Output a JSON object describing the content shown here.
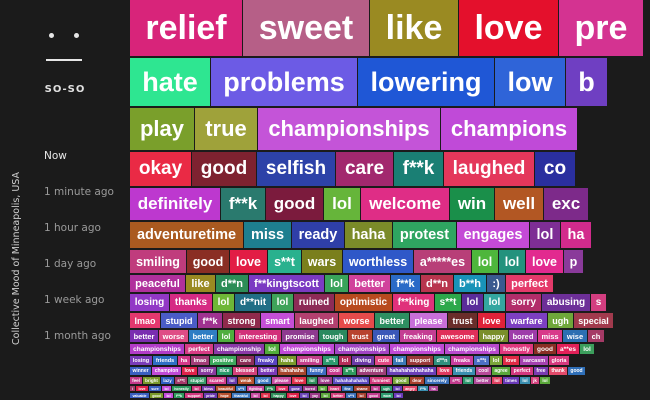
{
  "sidebar": {
    "mood_label": "SO-SO",
    "vertical_title": "Collective Mood of Minneapolis, USA",
    "times": [
      "Now",
      "1 minute ago",
      "1 hour ago",
      "1 day ago",
      "1 week ago",
      "1 month ago"
    ],
    "active_time_index": 0
  },
  "rows": [
    {
      "words": [
        {
          "t": "relief",
          "c": "#d8247a"
        },
        {
          "t": "sweet",
          "c": "#b65f87"
        },
        {
          "t": "like",
          "c": "#9a8a22"
        },
        {
          "t": "love",
          "c": "#e4102c"
        },
        {
          "t": "pre",
          "c": "#d43391"
        }
      ]
    },
    {
      "words": [
        {
          "t": "hate",
          "c": "#2ee691"
        },
        {
          "t": "problems",
          "c": "#6c5be5"
        },
        {
          "t": "lowering",
          "c": "#1f57d6"
        },
        {
          "t": "low",
          "c": "#2f64d8"
        },
        {
          "t": "b",
          "c": "#6f3fc2"
        }
      ]
    },
    {
      "words": [
        {
          "t": "play",
          "c": "#7a9f2b"
        },
        {
          "t": "true",
          "c": "#9fa23a"
        },
        {
          "t": "championships",
          "c": "#c454d8"
        },
        {
          "t": "champions",
          "c": "#c04ad8"
        }
      ]
    },
    {
      "words": [
        {
          "t": "okay",
          "c": "#ea2a45"
        },
        {
          "t": "good",
          "c": "#7e2230"
        },
        {
          "t": "selfish",
          "c": "#2d42a8"
        },
        {
          "t": "care",
          "c": "#a2286e"
        },
        {
          "t": "f**k",
          "c": "#1a7f74"
        },
        {
          "t": "laughed",
          "c": "#e4375b"
        },
        {
          "t": "co",
          "c": "#2a2f9f"
        }
      ]
    },
    {
      "words": [
        {
          "t": "definitely",
          "c": "#bd38cf"
        },
        {
          "t": "f**k",
          "c": "#2a7a6e"
        },
        {
          "t": "good",
          "c": "#7b1b3d"
        },
        {
          "t": "lol",
          "c": "#66b53a"
        },
        {
          "t": "welcome",
          "c": "#df2d86"
        },
        {
          "t": "win",
          "c": "#1a8f4a"
        },
        {
          "t": "well",
          "c": "#b25723"
        },
        {
          "t": "exc",
          "c": "#7d2a8a"
        }
      ]
    },
    {
      "words": [
        {
          "t": "adventuretime",
          "c": "#aa5a20"
        },
        {
          "t": "miss",
          "c": "#1e7f8f"
        },
        {
          "t": "ready",
          "c": "#2f3fa8"
        },
        {
          "t": "haha",
          "c": "#7b8b29"
        },
        {
          "t": "protest",
          "c": "#2fa561"
        },
        {
          "t": "engages",
          "c": "#c44ad6"
        },
        {
          "t": "lol",
          "c": "#7e2e95"
        },
        {
          "t": "ha",
          "c": "#d22b8c"
        }
      ]
    },
    {
      "words": [
        {
          "t": "smiling",
          "c": "#c03c7d"
        },
        {
          "t": "good",
          "c": "#8a2e24"
        },
        {
          "t": "love",
          "c": "#e21d45"
        },
        {
          "t": "s**t",
          "c": "#29b18e"
        },
        {
          "t": "wars",
          "c": "#7a7f1c"
        },
        {
          "t": "worthless",
          "c": "#2f58c8"
        },
        {
          "t": "a*****es",
          "c": "#b83f78"
        },
        {
          "t": "lol",
          "c": "#4eb63c"
        },
        {
          "t": "lol",
          "c": "#23927d"
        },
        {
          "t": "love",
          "c": "#e22a8f"
        },
        {
          "t": "p",
          "c": "#8a3a9a"
        }
      ]
    },
    {
      "words": [
        {
          "t": "peaceful",
          "c": "#b0309c"
        },
        {
          "t": "like",
          "c": "#9a8a22"
        },
        {
          "t": "d**n",
          "c": "#2c8d57"
        },
        {
          "t": "f**kingtscott",
          "c": "#7b3ac2"
        },
        {
          "t": "lol",
          "c": "#39a35a"
        },
        {
          "t": "better",
          "c": "#d1429c"
        },
        {
          "t": "f**k",
          "c": "#2b6ac7"
        },
        {
          "t": "d**n",
          "c": "#b8354e"
        },
        {
          "t": "b**h",
          "c": "#1993b8"
        },
        {
          "t": ":)",
          "c": "#3a5a8f"
        },
        {
          "t": "perfect",
          "c": "#e43a6a"
        }
      ]
    },
    {
      "words": [
        {
          "t": "losing",
          "c": "#9238c6"
        },
        {
          "t": "thanks",
          "c": "#d62b84"
        },
        {
          "t": "lol",
          "c": "#6eb737"
        },
        {
          "t": "d**nit",
          "c": "#216f86"
        },
        {
          "t": "lol",
          "c": "#3fa35a"
        },
        {
          "t": "ruined",
          "c": "#8d2b57"
        },
        {
          "t": "optimistic",
          "c": "#b84a1f"
        },
        {
          "t": "f**king",
          "c": "#e0317b"
        },
        {
          "t": "s**t",
          "c": "#2da84b"
        },
        {
          "t": "lol",
          "c": "#5a2c9a"
        },
        {
          "t": "lol",
          "c": "#33a6a0"
        },
        {
          "t": "sorry",
          "c": "#b22d6a"
        },
        {
          "t": "abusing",
          "c": "#6d2f98"
        },
        {
          "t": "s",
          "c": "#d33e80"
        }
      ]
    },
    {
      "words": [
        {
          "t": "lmao",
          "c": "#e4386e"
        },
        {
          "t": "stupid",
          "c": "#4a5cc6"
        },
        {
          "t": "f**k",
          "c": "#a03290"
        },
        {
          "t": "strong",
          "c": "#8f2a4c"
        },
        {
          "t": "smart",
          "c": "#c44fd6"
        },
        {
          "t": "laughed",
          "c": "#b3406f"
        },
        {
          "t": "worse",
          "c": "#e64b4b"
        },
        {
          "t": "better",
          "c": "#2e8f62"
        },
        {
          "t": "please",
          "c": "#c86fd8"
        },
        {
          "t": "trust",
          "c": "#6a2d2a"
        },
        {
          "t": "love",
          "c": "#e02239"
        },
        {
          "t": "warfare",
          "c": "#7d3fc1"
        },
        {
          "t": "ugh",
          "c": "#6fa73a"
        },
        {
          "t": "special",
          "c": "#a13a4d"
        }
      ]
    },
    {
      "words": [
        {
          "t": "better",
          "c": "#7a2eb0"
        },
        {
          "t": "worse",
          "c": "#df4c86"
        },
        {
          "t": "better",
          "c": "#2f7ec4"
        },
        {
          "t": "lol",
          "c": "#4fae3e"
        },
        {
          "t": "interesting",
          "c": "#d2307a"
        },
        {
          "t": "promise",
          "c": "#8f3a90"
        },
        {
          "t": "tough",
          "c": "#2a8a5f"
        },
        {
          "t": "trust",
          "c": "#b8432e"
        },
        {
          "t": "great",
          "c": "#3b58b8"
        },
        {
          "t": "freaking",
          "c": "#c43e93"
        },
        {
          "t": "awesome",
          "c": "#e02f5a"
        },
        {
          "t": "happy",
          "c": "#7a8f2a"
        },
        {
          "t": "bored",
          "c": "#9e3caa"
        },
        {
          "t": "miss",
          "c": "#d83a8a"
        },
        {
          "t": "wise",
          "c": "#2c6fb2"
        },
        {
          "t": "ch",
          "c": "#a53a66"
        }
      ]
    },
    {
      "words": [
        {
          "t": "championships",
          "c": "#b23cc8"
        },
        {
          "t": "perfect",
          "c": "#d63c84"
        },
        {
          "t": "championship",
          "c": "#8b3aa8"
        },
        {
          "t": "lol",
          "c": "#51ad3b"
        },
        {
          "t": "championships",
          "c": "#c04ad6"
        },
        {
          "t": "championships",
          "c": "#a245c4"
        },
        {
          "t": "championships",
          "c": "#c04ad6"
        },
        {
          "t": "championships",
          "c": "#b84acd"
        },
        {
          "t": "honestly",
          "c": "#e0387e"
        },
        {
          "t": "good",
          "c": "#8a2e24"
        },
        {
          "t": "a**es",
          "c": "#e22058"
        },
        {
          "t": "lol",
          "c": "#3c9e5c"
        }
      ]
    },
    {
      "words": [
        {
          "t": "losing",
          "c": "#7a3cb8"
        },
        {
          "t": "friends",
          "c": "#2f6fc4"
        },
        {
          "t": "ha",
          "c": "#d4398a"
        },
        {
          "t": "lmao",
          "c": "#a33d78"
        },
        {
          "t": "positive",
          "c": "#3da95d"
        },
        {
          "t": "care",
          "c": "#8c2e57"
        },
        {
          "t": "freaky",
          "c": "#5a45c0"
        },
        {
          "t": "haha",
          "c": "#7a9a2b"
        },
        {
          "t": "smiling",
          "c": "#c3408b"
        },
        {
          "t": "s**t",
          "c": "#2c9a6e"
        },
        {
          "t": "lol",
          "c": "#b52e5a"
        },
        {
          "t": "diving",
          "c": "#6b3aa6"
        },
        {
          "t": "cute",
          "c": "#e04a84"
        },
        {
          "t": "fail",
          "c": "#3b7ab8"
        },
        {
          "t": "support",
          "c": "#9b3a3a"
        },
        {
          "t": "d**n",
          "c": "#2f8f7e"
        },
        {
          "t": "freaks",
          "c": "#c93c9e"
        },
        {
          "t": "s**t",
          "c": "#4c6fc5"
        },
        {
          "t": "lol",
          "c": "#7aa63a"
        },
        {
          "t": "love",
          "c": "#e02a45"
        },
        {
          "t": "sarcasm",
          "c": "#a541b0"
        },
        {
          "t": "gloria",
          "c": "#d5397e"
        }
      ]
    },
    {
      "words": [
        {
          "t": "winner",
          "c": "#3a5fc0"
        },
        {
          "t": "champion",
          "c": "#c04ad6"
        },
        {
          "t": "love",
          "c": "#e0224a"
        },
        {
          "t": "sorry",
          "c": "#8a3aa0"
        },
        {
          "t": "nice",
          "c": "#2a9a6a"
        },
        {
          "t": "blessed",
          "c": "#d4427a"
        },
        {
          "t": "better",
          "c": "#7b3ab8"
        },
        {
          "t": "hahahaha",
          "c": "#a8452e"
        },
        {
          "t": "funny",
          "c": "#3f6ec2"
        },
        {
          "t": "cool",
          "c": "#c83c8e"
        },
        {
          "t": "s**t",
          "c": "#2e9a5e"
        },
        {
          "t": "adventure",
          "c": "#9e3f78"
        },
        {
          "t": "hahahahahhahaha",
          "c": "#6a3fb8"
        },
        {
          "t": "love",
          "c": "#e03a60"
        },
        {
          "t": "friends",
          "c": "#3a8fb0"
        },
        {
          "t": "cool",
          "c": "#b84a9a"
        },
        {
          "t": "agree",
          "c": "#5aa83a"
        },
        {
          "t": "perfect",
          "c": "#d2387e"
        },
        {
          "t": "free",
          "c": "#7a3ab0"
        },
        {
          "t": "thank",
          "c": "#e24a6a"
        },
        {
          "t": "good",
          "c": "#2f6fb8"
        }
      ]
    },
    {
      "words": [
        {
          "t": "feel",
          "c": "#c43a8a"
        },
        {
          "t": "bright",
          "c": "#7a9a2b"
        },
        {
          "t": "lazy",
          "c": "#2f5fc0"
        },
        {
          "t": "s**t",
          "c": "#a63a6a"
        },
        {
          "t": "stupid",
          "c": "#3a9a6a"
        },
        {
          "t": "scared",
          "c": "#d4408a"
        },
        {
          "t": "lol",
          "c": "#6b3ab0"
        },
        {
          "t": "weak",
          "c": "#b8502e"
        },
        {
          "t": "good",
          "c": "#3f7ac2"
        },
        {
          "t": "please",
          "c": "#c84aa0"
        },
        {
          "t": "love",
          "c": "#e0304a"
        },
        {
          "t": "lol",
          "c": "#2e8f5a"
        },
        {
          "t": "love",
          "c": "#9e3a8a"
        },
        {
          "t": "hahahahahaha",
          "c": "#5a4ac0"
        },
        {
          "t": "funniest",
          "c": "#d2387a"
        },
        {
          "t": "good",
          "c": "#7aa63a"
        },
        {
          "t": "dear",
          "c": "#a8402e"
        },
        {
          "t": "sincerely",
          "c": "#3a6fb8"
        },
        {
          "t": "s**t",
          "c": "#c23c8e"
        },
        {
          "t": "lol",
          "c": "#2f9a70"
        },
        {
          "t": "better",
          "c": "#b04a9a"
        },
        {
          "t": "lol",
          "c": "#e04060"
        },
        {
          "t": "times",
          "c": "#6a3ab8"
        },
        {
          "t": "lol",
          "c": "#3a8fb0"
        },
        {
          "t": "jk",
          "c": "#d4427e"
        },
        {
          "t": "lol",
          "c": "#5aa83a"
        }
      ]
    },
    {
      "words": [
        {
          "t": "i",
          "c": "#a23a6a"
        },
        {
          "t": "love",
          "c": "#e0224a"
        },
        {
          "t": "sure",
          "c": "#3a5fc0"
        },
        {
          "t": "lol",
          "c": "#c44ad6"
        },
        {
          "t": "honestly",
          "c": "#2e9a5e"
        },
        {
          "t": "lol",
          "c": "#d2387e"
        },
        {
          "t": "bless",
          "c": "#7a3ab0"
        },
        {
          "t": "beautiful",
          "c": "#b8502e"
        },
        {
          "t": "s**t",
          "c": "#3f7ac2"
        },
        {
          "t": "fighting",
          "c": "#c84aa0"
        },
        {
          "t": "f**k",
          "c": "#2f8f5a"
        },
        {
          "t": "love",
          "c": "#e03060"
        },
        {
          "t": "gone",
          "c": "#6b45b8"
        },
        {
          "t": "bored",
          "c": "#9e3a8a"
        },
        {
          "t": "lol",
          "c": "#5aa83a"
        },
        {
          "t": "heart",
          "c": "#d4407a"
        },
        {
          "t": "fine",
          "c": "#3a6fb8"
        },
        {
          "t": "shame",
          "c": "#a8402e"
        },
        {
          "t": "lol",
          "c": "#c23c8e"
        },
        {
          "t": "ugh",
          "c": "#2f9a70"
        },
        {
          "t": "lol",
          "c": "#6a3ab8"
        },
        {
          "t": "angry",
          "c": "#e04a6a"
        },
        {
          "t": "f**k",
          "c": "#3a8fb0"
        },
        {
          "t": "ha",
          "c": "#b04a9a"
        }
      ]
    },
    {
      "words": [
        {
          "t": "valuable",
          "c": "#3a5fc0"
        },
        {
          "t": "good",
          "c": "#7a9a2b"
        },
        {
          "t": "lol",
          "c": "#c44ad6"
        },
        {
          "t": "f**k",
          "c": "#2e9a5e"
        },
        {
          "t": "support",
          "c": "#d2387e"
        },
        {
          "t": "pride",
          "c": "#6b3ab0"
        },
        {
          "t": "hope",
          "c": "#b8502e"
        },
        {
          "t": "thankful",
          "c": "#3f7ac2"
        },
        {
          "t": "lol",
          "c": "#c84aa0"
        },
        {
          "t": "lol",
          "c": "#e0304a"
        },
        {
          "t": "happy",
          "c": "#2f8f5a"
        },
        {
          "t": "love",
          "c": "#e0224a"
        },
        {
          "t": "lol",
          "c": "#6b45b8"
        },
        {
          "t": "yay",
          "c": "#9e3a8a"
        },
        {
          "t": "lol",
          "c": "#5aa83a"
        },
        {
          "t": "better",
          "c": "#d4407a"
        },
        {
          "t": "s**t",
          "c": "#3a6fb8"
        },
        {
          "t": "lol",
          "c": "#a8402e"
        },
        {
          "t": "good",
          "c": "#c23c8e"
        },
        {
          "t": "wow",
          "c": "#2f9a70"
        },
        {
          "t": "lol",
          "c": "#6a3ab8"
        }
      ]
    }
  ]
}
